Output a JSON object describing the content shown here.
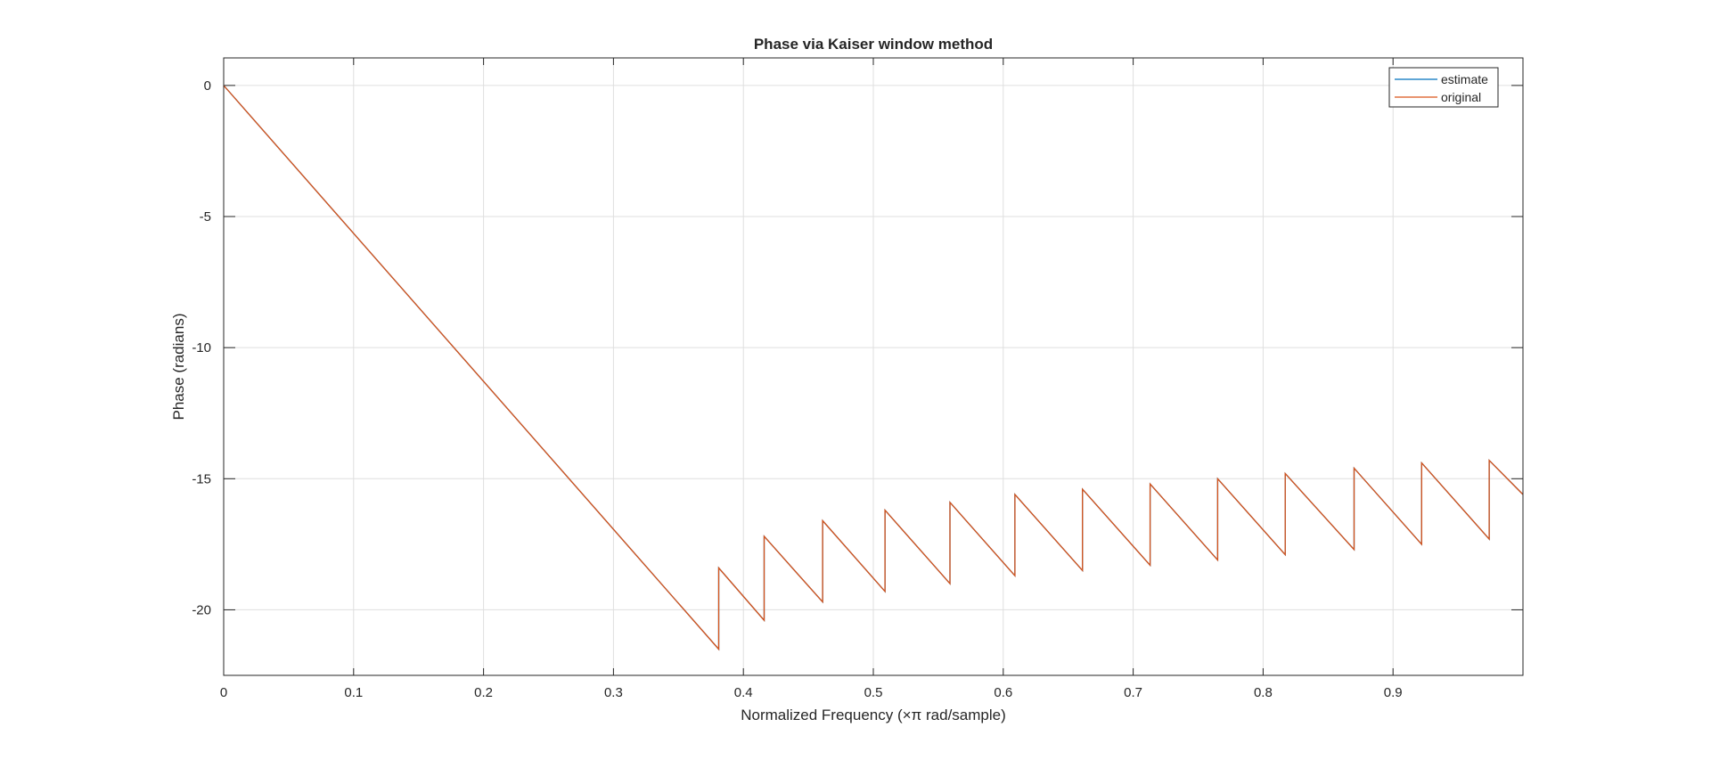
{
  "chart_data": {
    "type": "line",
    "title": "Phase via Kaiser window method",
    "xlabel": "Normalized Frequency (×π rad/sample)",
    "ylabel": "Phase (radians)",
    "xlim": [
      0,
      1
    ],
    "ylim": [
      -22.5,
      1.05
    ],
    "xticks": [
      0,
      0.1,
      0.2,
      0.3,
      0.4,
      0.5,
      0.6,
      0.7,
      0.8,
      0.9
    ],
    "yticks": [
      0,
      -5,
      -10,
      -15,
      -20
    ],
    "grid": true,
    "legend_position": "top-right",
    "series": [
      {
        "name": "estimate",
        "color": "#0072BD",
        "x": [
          0,
          0.381,
          0.381,
          0.416,
          0.416,
          0.461,
          0.461,
          0.509,
          0.509,
          0.559,
          0.559,
          0.609,
          0.609,
          0.661,
          0.661,
          0.713,
          0.713,
          0.765,
          0.765,
          0.817,
          0.817,
          0.87,
          0.87,
          0.922,
          0.922,
          0.974,
          0.974,
          1.0
        ],
        "y": [
          0,
          -21.5,
          -18.4,
          -20.4,
          -17.2,
          -19.7,
          -16.6,
          -19.3,
          -16.2,
          -19.0,
          -15.9,
          -18.7,
          -15.6,
          -18.5,
          -15.4,
          -18.3,
          -15.2,
          -18.1,
          -15.0,
          -17.9,
          -14.8,
          -17.7,
          -14.6,
          -17.5,
          -14.4,
          -17.3,
          -14.3,
          -15.6
        ]
      },
      {
        "name": "original",
        "color": "#D95319",
        "x": [
          0,
          0.381,
          0.381,
          0.416,
          0.416,
          0.461,
          0.461,
          0.509,
          0.509,
          0.559,
          0.559,
          0.609,
          0.609,
          0.661,
          0.661,
          0.713,
          0.713,
          0.765,
          0.765,
          0.817,
          0.817,
          0.87,
          0.87,
          0.922,
          0.922,
          0.974,
          0.974,
          1.0
        ],
        "y": [
          0,
          -21.5,
          -18.4,
          -20.4,
          -17.2,
          -19.7,
          -16.6,
          -19.3,
          -16.2,
          -19.0,
          -15.9,
          -18.7,
          -15.6,
          -18.5,
          -15.4,
          -18.3,
          -15.2,
          -18.1,
          -15.0,
          -17.9,
          -14.8,
          -17.7,
          -14.6,
          -17.5,
          -14.4,
          -17.3,
          -14.3,
          -15.6
        ]
      }
    ]
  }
}
